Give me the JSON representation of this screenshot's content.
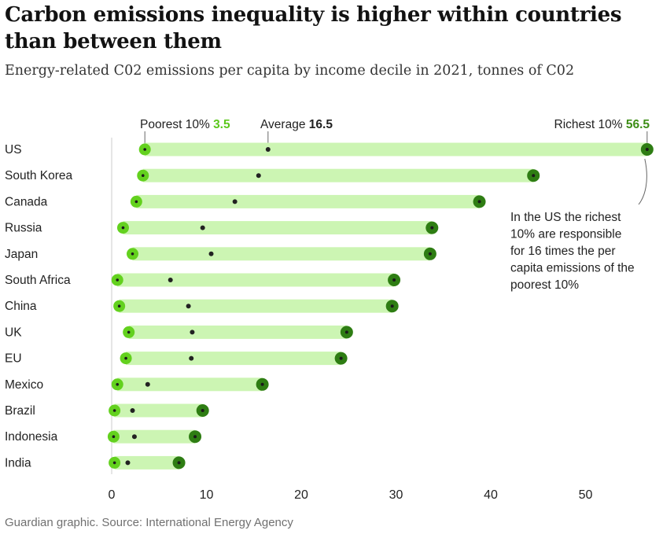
{
  "header": {
    "title": "Carbon emissions inequality is higher within countries than between them",
    "subtitle": "Energy-related C02 emissions per capita by income decile in 2021, tonnes of C02"
  },
  "footer": {
    "source": "Guardian graphic. Source: International Energy Agency"
  },
  "legend": {
    "poorest_label": "Poorest 10%",
    "poorest_value": "3.5",
    "average_label": "Average",
    "average_value": "16.5",
    "richest_label": "Richest 10%",
    "richest_value": "56.5"
  },
  "annotation": {
    "lines": [
      "In the US the richest",
      "10% are responsible",
      "for 16 times the per",
      "capita emissions of the",
      "poorest 10%"
    ]
  },
  "colors": {
    "bar": "#ccf5b3",
    "poorest_dot": "#63d11e",
    "richest_dot": "#2e7d13",
    "average_dot": "#222222",
    "center_dot": "#1a1a1a",
    "axis_line": "#cccccc",
    "poorest_text": "#5dc81d",
    "richest_text": "#3e8e17"
  },
  "chart_data": {
    "type": "dot-range",
    "title": "Carbon emissions inequality is higher within countries than between them",
    "subtitle": "Energy-related C02 emissions per capita by income decile in 2021, tonnes of C02",
    "xlim": [
      0,
      57
    ],
    "xticks": [
      0,
      10,
      20,
      30,
      40,
      50
    ],
    "categories": [
      "US",
      "South Korea",
      "Canada",
      "Russia",
      "Japan",
      "South Africa",
      "China",
      "UK",
      "EU",
      "Mexico",
      "Brazil",
      "Indonesia",
      "India"
    ],
    "series": [
      {
        "name": "Poorest 10%",
        "values": [
          3.5,
          3.3,
          2.6,
          1.2,
          2.2,
          0.6,
          0.8,
          1.8,
          1.5,
          0.6,
          0.3,
          0.2,
          0.3
        ]
      },
      {
        "name": "Average",
        "values": [
          16.5,
          15.5,
          13.0,
          9.6,
          10.5,
          6.2,
          8.1,
          8.5,
          8.4,
          3.8,
          2.2,
          2.4,
          1.7
        ]
      },
      {
        "name": "Richest 10%",
        "values": [
          56.5,
          44.5,
          38.8,
          33.8,
          33.6,
          29.8,
          29.6,
          24.8,
          24.2,
          15.9,
          9.6,
          8.8,
          7.1
        ]
      }
    ]
  }
}
